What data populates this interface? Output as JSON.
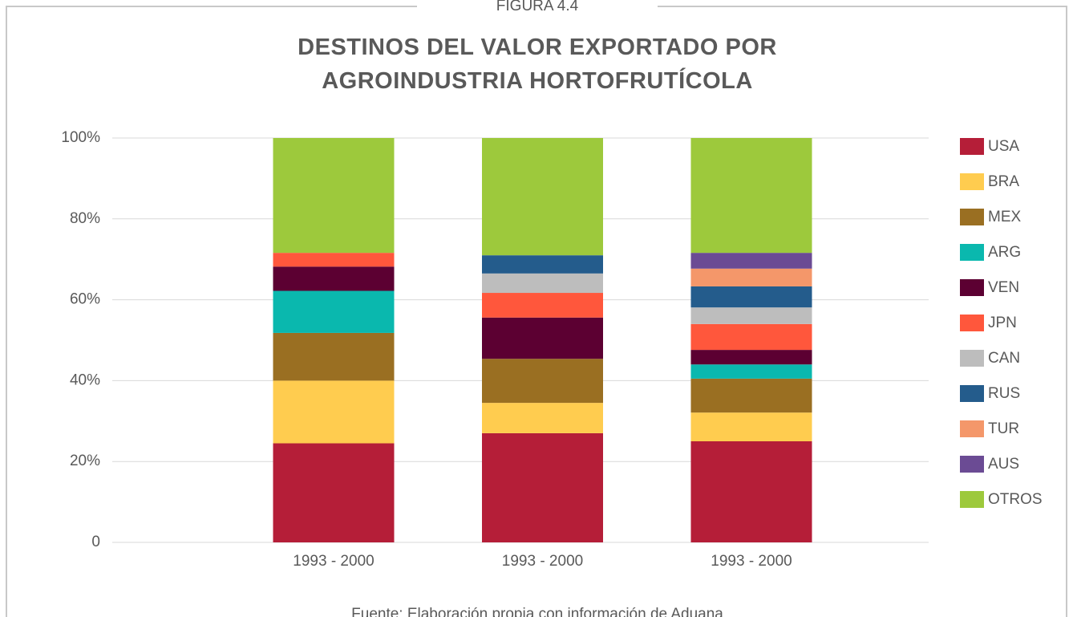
{
  "chart_data": {
    "type": "stacked_bar",
    "header": "FIGURA 4.4",
    "title": "DESTINOS DEL VALOR EXPORTADO POR AGROINDUSTRIA HORTOFRUTÍCOLA",
    "source": "Fuente: Elaboración propia con información de Aduana",
    "categories": [
      "1993 - 2000",
      "1993 - 2000",
      "1993 - 2000"
    ],
    "series": [
      {
        "name": "USA",
        "color": "#B51E38",
        "values": [
          24.5,
          27.0,
          25.0
        ]
      },
      {
        "name": "BRA",
        "color": "#FFCC4F",
        "values": [
          15.5,
          7.5,
          7.1
        ]
      },
      {
        "name": "MEX",
        "color": "#9A6F22",
        "values": [
          11.8,
          10.9,
          8.4
        ]
      },
      {
        "name": "ARG",
        "color": "#0AB8AE",
        "values": [
          10.4,
          0,
          3.5
        ]
      },
      {
        "name": "VEN",
        "color": "#5C0032",
        "values": [
          6.0,
          10.2,
          3.6
        ]
      },
      {
        "name": "JPN",
        "color": "#FF573C",
        "values": [
          3.4,
          6.1,
          6.4
        ]
      },
      {
        "name": "CAN",
        "color": "#BDBDBD",
        "values": [
          0,
          4.8,
          4.1
        ]
      },
      {
        "name": "RUS",
        "color": "#245C8C",
        "values": [
          0,
          4.5,
          5.2
        ]
      },
      {
        "name": "TUR",
        "color": "#F4976A",
        "values": [
          0,
          0,
          4.4
        ]
      },
      {
        "name": "AUS",
        "color": "#6B4B94",
        "values": [
          0,
          0,
          3.9
        ]
      },
      {
        "name": "OTROS",
        "color": "#9DC93C",
        "values": [
          28.4,
          29.0,
          28.4
        ]
      }
    ],
    "ylim": [
      0,
      100
    ],
    "yticks": [
      0,
      {
        "value": 20,
        "label": "20%"
      },
      {
        "value": 40,
        "label": "40%"
      },
      {
        "value": 60,
        "label": "60%"
      },
      {
        "value": 80,
        "label": "80%"
      },
      {
        "value": 100,
        "label": "100%"
      }
    ],
    "grid": true,
    "legend": "right"
  }
}
